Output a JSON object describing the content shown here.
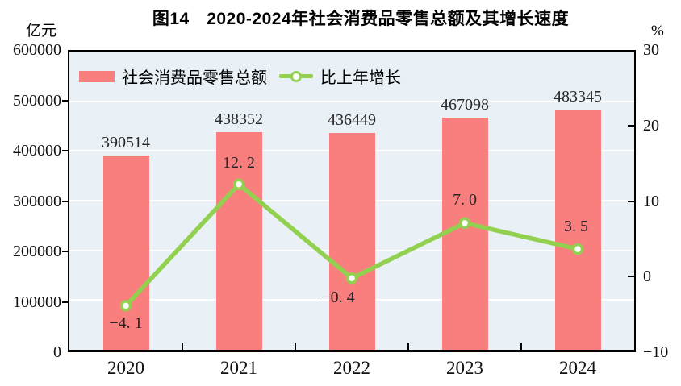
{
  "chart_data": {
    "type": "combo-bar-line",
    "title": "图14　2020-2024年社会消费品零售总额及其增长速度",
    "categories": [
      "2020",
      "2021",
      "2022",
      "2023",
      "2024"
    ],
    "series": [
      {
        "name": "社会消费品零售总额",
        "chart": "bar",
        "axis": "left",
        "unit": "亿元",
        "values": [
          390514,
          438352,
          436449,
          467098,
          483345
        ],
        "labels": [
          "390514",
          "438352",
          "436449",
          "467098",
          "483345"
        ],
        "color": "#f97f7f"
      },
      {
        "name": "比上年增长",
        "chart": "line",
        "axis": "right",
        "unit": "%",
        "values": [
          -4.1,
          12.2,
          -0.4,
          7.0,
          3.5
        ],
        "labels": [
          "−4. 1",
          "12. 2",
          "−0. 4",
          "7. 0",
          "3. 5"
        ],
        "color": "#92d050",
        "marker_fill": "#ffffff"
      }
    ],
    "left_axis": {
      "unit": "亿元",
      "min": 0,
      "max": 600000,
      "tick_step": 100000,
      "ticks": [
        "600000",
        "500000",
        "400000",
        "300000",
        "200000",
        "100000",
        "0"
      ]
    },
    "right_axis": {
      "unit": "%",
      "min": -10,
      "max": 30,
      "tick_step": 10,
      "ticks": [
        "30",
        "20",
        "10",
        "0",
        "−10"
      ],
      "tick_values": [
        30,
        20,
        10,
        0,
        -10
      ]
    },
    "legend": {
      "position": "top-left-inside",
      "entries": [
        "社会消费品零售总额",
        "比上年增长"
      ]
    },
    "grid": {
      "horizontal": true,
      "color": "#ffffff"
    },
    "plot_background": "#e9f1f6",
    "border_color": "#000000",
    "text_color": "#1c1c1c"
  }
}
